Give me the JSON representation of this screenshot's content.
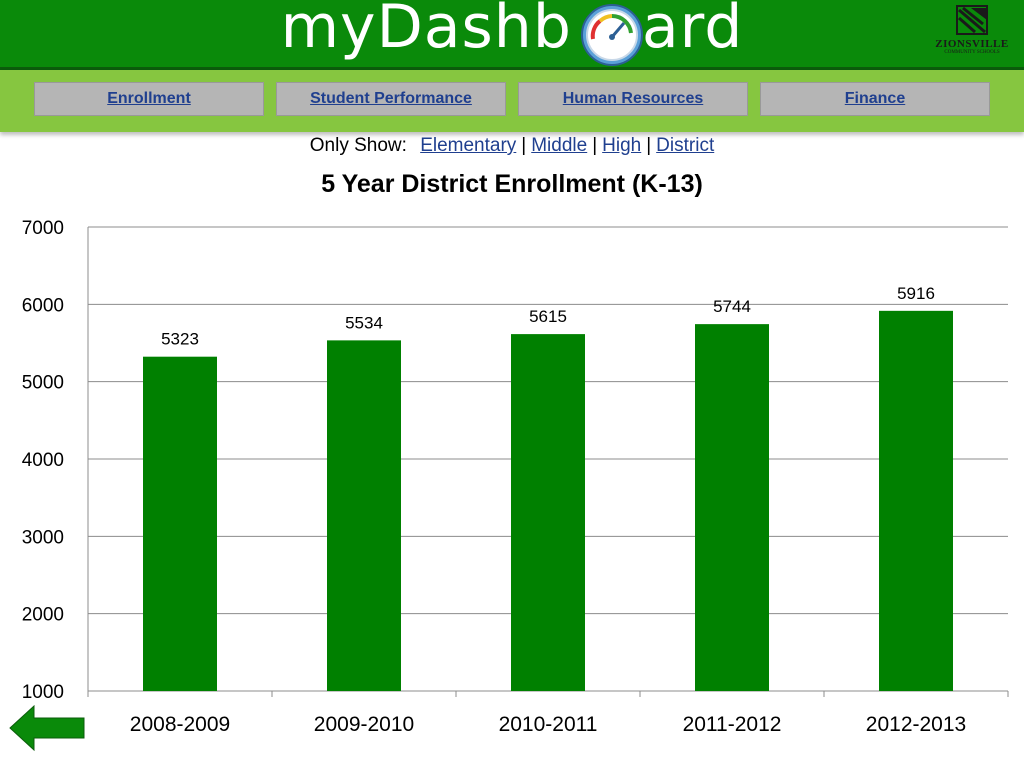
{
  "header": {
    "logo_prefix": "myDashb",
    "logo_suffix": "ard",
    "org_name": "ZIONSVILLE",
    "org_sub": "COMMUNITY SCHOOLS"
  },
  "nav": [
    {
      "label": "Enrollment"
    },
    {
      "label": "Student Performance"
    },
    {
      "label": "Human Resources"
    },
    {
      "label": "Finance"
    }
  ],
  "filter": {
    "label": "Only Show:",
    "options": [
      "Elementary",
      "Middle",
      "High",
      "District"
    ],
    "separator": "|"
  },
  "colors": {
    "header_green": "#0a8a0a",
    "nav_green": "#86c640",
    "bar_green": "#008000",
    "link_blue": "#1f3f8f"
  },
  "icons": {
    "gauge": "gauge-icon",
    "back": "back-arrow-icon",
    "org_logo": "school-logo-icon"
  },
  "chart_data": {
    "type": "bar",
    "title": "5 Year District Enrollment (K-13)",
    "categories": [
      "2008-2009",
      "2009-2010",
      "2010-2011",
      "2011-2012",
      "2012-2013"
    ],
    "values": [
      5323,
      5534,
      5615,
      5744,
      5916
    ],
    "ylim": [
      1000,
      7000
    ],
    "yticks": [
      1000,
      2000,
      3000,
      4000,
      5000,
      6000,
      7000
    ],
    "grid": true,
    "xlabel": "",
    "ylabel": "",
    "data_labels": true,
    "bar_color": "#008000"
  }
}
